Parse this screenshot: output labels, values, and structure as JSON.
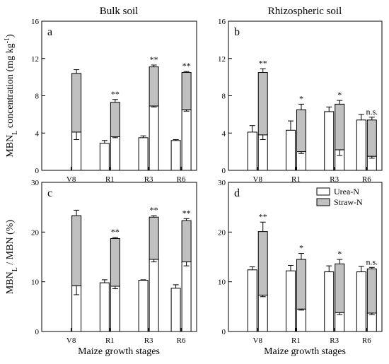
{
  "colors": {
    "urea": "#ffffff",
    "straw": "#c0c0c0",
    "stroke": "#000000"
  },
  "figure": {
    "column_titles": [
      "Bulk soil",
      "Rhizospheric soil"
    ],
    "x_title": "Maize growth stages",
    "legend": [
      {
        "label": "Urea-N",
        "color": "#ffffff"
      },
      {
        "label": "Straw-N",
        "color": "#c0c0c0"
      }
    ]
  },
  "chart_data": [
    {
      "panel": "a",
      "type": "bar",
      "categories": [
        "V8",
        "R1",
        "R3",
        "R6"
      ],
      "ylabel_main": "MBN",
      "ylabel_sub": "L",
      "ylabel_rest": "  concentration (mg kg",
      "ylabel_sup": "-1",
      "ylabel_end": ")",
      "ylim": [
        0,
        16
      ],
      "yticks": [
        0,
        4,
        8,
        12,
        16
      ],
      "urea_only": [
        null,
        2.9,
        3.5,
        3.2
      ],
      "urea_only_err": [
        null,
        0.3,
        0.2,
        0.1
      ],
      "mixed_urea": [
        4.1,
        3.6,
        6.9,
        6.5
      ],
      "mixed_urea_err": [
        0.8,
        0.1,
        0.1,
        0.15
      ],
      "mixed_total": [
        10.4,
        7.3,
        11.1,
        10.5
      ],
      "mixed_total_err": [
        0.4,
        0.3,
        0.2,
        0.1
      ],
      "significance": [
        "",
        "**",
        "**",
        "**"
      ]
    },
    {
      "panel": "b",
      "type": "bar",
      "categories": [
        "V8",
        "R1",
        "R3",
        "R6"
      ],
      "ylim": [
        0,
        16
      ],
      "yticks": [
        0,
        4,
        8,
        12,
        16
      ],
      "urea_only": [
        4.1,
        4.3,
        6.3,
        5.4
      ],
      "urea_only_err": [
        0.7,
        1.0,
        0.5,
        0.6
      ],
      "mixed_urea": [
        3.8,
        2.0,
        2.2,
        1.5
      ],
      "mixed_urea_err": [
        0.5,
        0.2,
        0.6,
        0.2
      ],
      "mixed_total": [
        10.5,
        6.5,
        7.1,
        5.4
      ],
      "mixed_total_err": [
        0.4,
        0.6,
        0.4,
        0.3
      ],
      "significance": [
        "**",
        "*",
        "*",
        "n.s."
      ]
    },
    {
      "panel": "c",
      "type": "bar",
      "categories": [
        "V8",
        "R1",
        "R3",
        "R6"
      ],
      "ylabel_main": "MBN",
      "ylabel_sub": "L",
      "ylabel_rest": " / MBN (%)",
      "ylim": [
        0,
        30
      ],
      "yticks": [
        0,
        10,
        20,
        30
      ],
      "urea_only": [
        null,
        9.8,
        10.3,
        8.7
      ],
      "urea_only_err": [
        null,
        0.6,
        0.1,
        0.7
      ],
      "mixed_urea": [
        9.2,
        9.1,
        14.5,
        14.0
      ],
      "mixed_urea_err": [
        1.8,
        0.5,
        0.5,
        0.8
      ],
      "mixed_total": [
        23.3,
        18.7,
        23.0,
        22.3
      ],
      "mixed_total_err": [
        1.1,
        0.2,
        0.3,
        0.4
      ],
      "significance": [
        "",
        "**",
        "**",
        "**"
      ]
    },
    {
      "panel": "d",
      "type": "bar",
      "categories": [
        "V8",
        "R1",
        "R3",
        "R6"
      ],
      "ylim": [
        0,
        30
      ],
      "yticks": [
        0,
        10,
        20,
        30
      ],
      "urea_only": [
        12.4,
        12.2,
        12.0,
        12.0
      ],
      "urea_only_err": [
        0.6,
        1.1,
        1.2,
        1.1
      ],
      "mixed_urea": [
        7.3,
        4.5,
        3.8,
        3.7
      ],
      "mixed_urea_err": [
        0.3,
        0.2,
        0.4,
        0.3
      ],
      "mixed_total": [
        20.1,
        14.5,
        13.6,
        12.6
      ],
      "mixed_total_err": [
        1.9,
        1.2,
        0.9,
        0.3
      ],
      "significance": [
        "**",
        "*",
        "*",
        "n.s."
      ]
    }
  ]
}
